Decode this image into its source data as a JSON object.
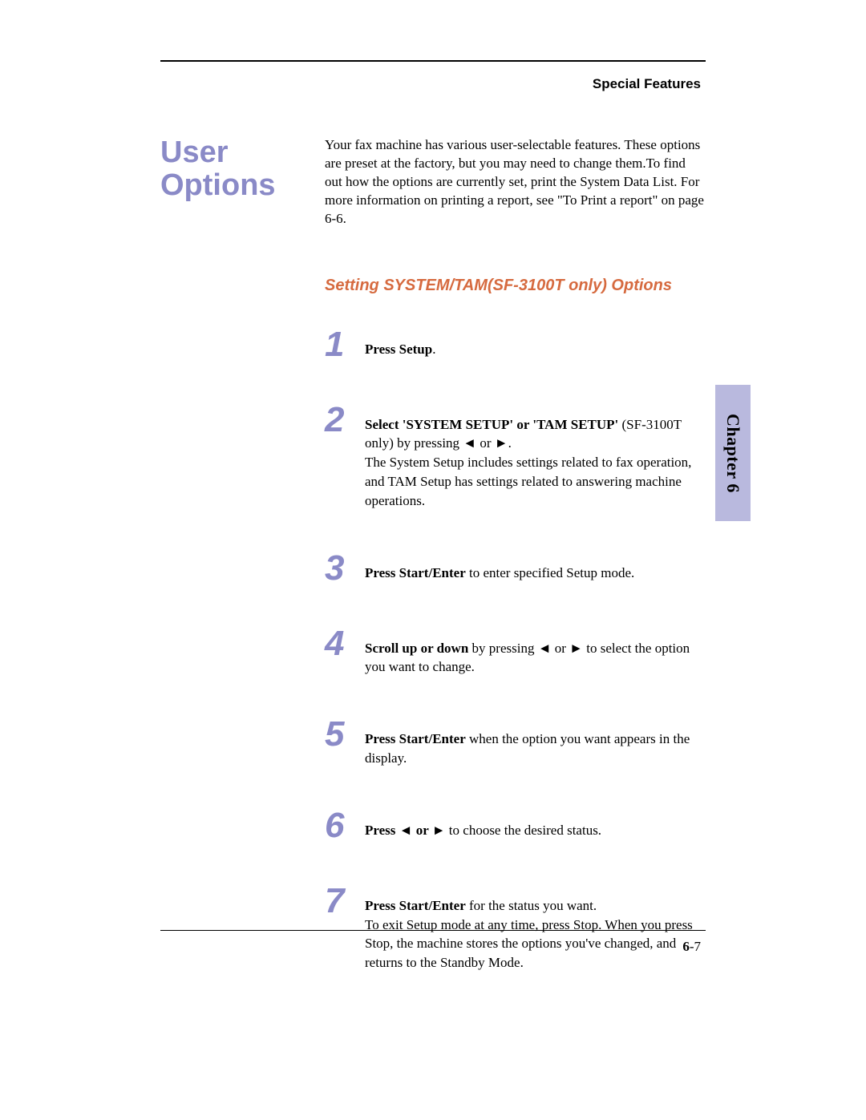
{
  "header": {
    "chapter_label": "Special Features"
  },
  "section": {
    "title_line1": "User",
    "title_line2": "Options",
    "intro": "Your fax machine has various user-selectable features. These options are preset at the factory, but you may need to change them.To find out how the options are currently set, print the System Data List. For more information on printing a report, see \"To Print a report\" on page 6-6."
  },
  "subsection": {
    "title": "Setting SYSTEM/TAM(SF-3100T only) Options"
  },
  "steps": [
    {
      "num": "1",
      "bold": "Press Setup",
      "tail": "."
    },
    {
      "num": "2",
      "bold": "Select 'SYSTEM SETUP' or 'TAM SETUP'",
      "mid": " (SF-3100T only) by pressing ◄ or ►.",
      "tail": "The System Setup includes settings related to fax operation, and TAM Setup has settings related to answering machine operations."
    },
    {
      "num": "3",
      "bold": "Press Start/Enter",
      "tail": " to enter specified Setup mode."
    },
    {
      "num": "4",
      "bold": "Scroll up or down",
      "tail": " by pressing ◄ or ► to select the option  you want to change."
    },
    {
      "num": "5",
      "bold": "Press  Start/Enter",
      "tail": " when the option you want appears in the display."
    },
    {
      "num": "6",
      "bold": "Press ◄ or ►",
      "tail": " to choose the desired status."
    },
    {
      "num": "7",
      "bold": "Press Start/Enter",
      "tail": " for the status you want.",
      "extra": "To exit Setup mode at any time, press Stop. When you press Stop, the machine stores the options you've changed, and returns to the Standby Mode."
    }
  ],
  "tab": {
    "label": "Chapter 6"
  },
  "footer": {
    "chapter_num": "6",
    "page_sep": "-",
    "page_num": "7"
  },
  "colors": {
    "lavender": "#8a8ac7",
    "orange": "#d66a3f",
    "tab_bg": "#b9b9de"
  }
}
